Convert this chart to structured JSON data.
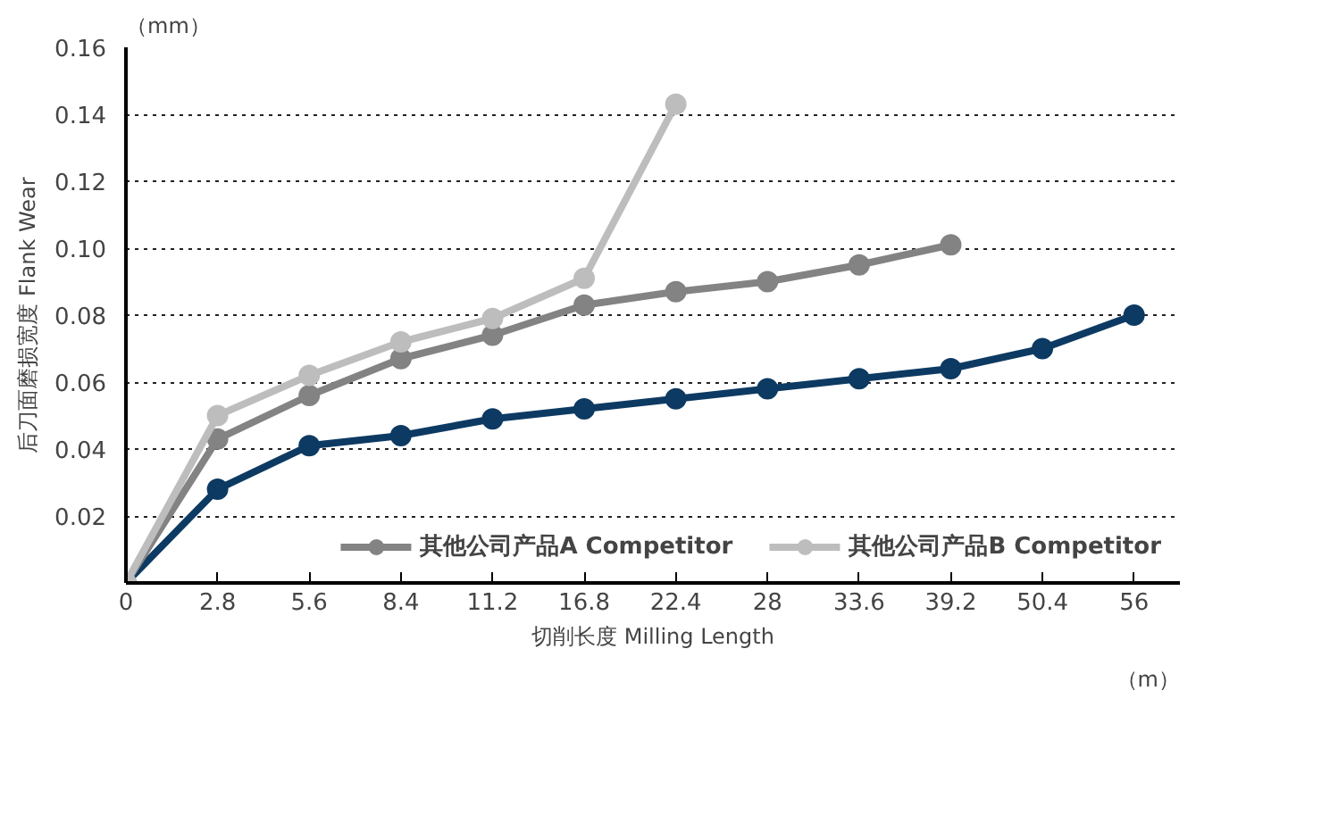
{
  "chart_data": {
    "type": "line",
    "xlabel": "切削长度 Milling Length",
    "ylabel": "后刀面磨损宽度 Flank Wear",
    "annotations": [
      "（mm）",
      "（m）"
    ],
    "categories": [
      "0",
      "2.8",
      "5.6",
      "8.4",
      "11.2",
      "16.8",
      "22.4",
      "28",
      "33.6",
      "39.2",
      "50.4",
      "56"
    ],
    "series": [
      {
        "color": "#0d3a62",
        "values": [
          0,
          0.028,
          0.041,
          0.044,
          0.049,
          0.052,
          0.055,
          0.058,
          0.061,
          0.064,
          0.07,
          0.08
        ]
      },
      {
        "name": "其他公司产品A Competitor",
        "color": "#838383",
        "values": [
          0,
          0.043,
          0.056,
          0.067,
          0.074,
          0.083,
          0.087,
          0.09,
          0.095,
          0.101,
          null,
          null
        ]
      },
      {
        "name": "其他公司产品B Competitor",
        "color": "#bdbdbd",
        "values": [
          0,
          0.05,
          0.062,
          0.072,
          0.079,
          0.091,
          0.143,
          null,
          null,
          null,
          null,
          null
        ]
      }
    ],
    "ylim": [
      0,
      0.16
    ],
    "yticks": [
      {
        "value": 0.02,
        "label": "0.02"
      },
      {
        "value": 0.04,
        "label": "0.04"
      },
      {
        "value": 0.06,
        "label": "0.06"
      },
      {
        "value": 0.08,
        "label": "0.08"
      },
      {
        "value": 0.1,
        "label": "0.10"
      },
      {
        "value": 0.12,
        "label": "0.12"
      },
      {
        "value": 0.14,
        "label": "0.14"
      },
      {
        "value": 0.16,
        "label": "0.16"
      }
    ],
    "grid": "y",
    "legend": "bottom",
    "marker": "circle",
    "line_style": "solid"
  }
}
